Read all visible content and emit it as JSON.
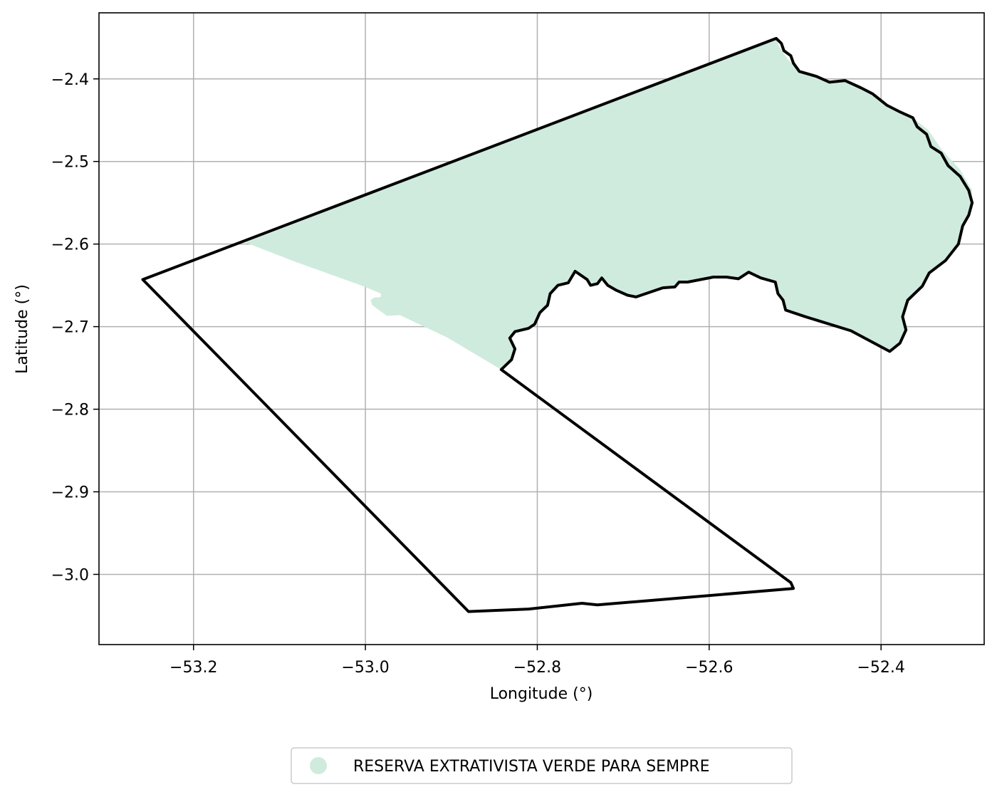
{
  "map": {
    "xlabel": "Longitude (°)",
    "ylabel": "Latitude (°)",
    "xlim": [
      -53.31,
      -52.28
    ],
    "ylim": [
      -3.085,
      -2.32
    ],
    "x_ticks": [
      {
        "value": -53.2,
        "label": "−53.2"
      },
      {
        "value": -53.0,
        "label": "−53.0"
      },
      {
        "value": -52.8,
        "label": "−52.8"
      },
      {
        "value": -52.6,
        "label": "−52.6"
      },
      {
        "value": -52.4,
        "label": "−52.4"
      }
    ],
    "y_ticks": [
      {
        "value": -2.4,
        "label": "−2.4"
      },
      {
        "value": -2.5,
        "label": "−2.5"
      },
      {
        "value": -2.6,
        "label": "−2.6"
      },
      {
        "value": -2.7,
        "label": "−2.7"
      },
      {
        "value": -2.8,
        "label": "−2.8"
      },
      {
        "value": -2.9,
        "label": "−2.9"
      },
      {
        "value": -3.0,
        "label": "−3.0"
      }
    ],
    "grid": true,
    "legend": {
      "placement": "bottom-center",
      "entries": [
        {
          "label": "RESERVA EXTRATIVISTA VERDE PARA SEMPRE",
          "color": "#cfebdd"
        }
      ]
    },
    "colors": {
      "reserve_fill": "#cfebdd",
      "boundary_stroke": "#000000",
      "grid": "#b0b0b0"
    },
    "layers": [
      {
        "name": "reserve-area",
        "type": "fill",
        "coords": [
          [
            -53.14,
            -2.598
          ],
          [
            -53.08,
            -2.622
          ],
          [
            -53.0,
            -2.652
          ],
          [
            -52.982,
            -2.66
          ],
          [
            -52.982,
            -2.664
          ],
          [
            -52.99,
            -2.665
          ],
          [
            -52.994,
            -2.668
          ],
          [
            -52.992,
            -2.674
          ],
          [
            -52.975,
            -2.687
          ],
          [
            -52.96,
            -2.686
          ],
          [
            -52.905,
            -2.713
          ],
          [
            -52.842,
            -2.752
          ],
          [
            -52.83,
            -2.74
          ],
          [
            -52.826,
            -2.727
          ],
          [
            -52.832,
            -2.714
          ],
          [
            -52.826,
            -2.706
          ],
          [
            -52.81,
            -2.702
          ],
          [
            -52.803,
            -2.697
          ],
          [
            -52.797,
            -2.683
          ],
          [
            -52.788,
            -2.674
          ],
          [
            -52.785,
            -2.66
          ],
          [
            -52.776,
            -2.65
          ],
          [
            -52.764,
            -2.647
          ],
          [
            -52.756,
            -2.633
          ],
          [
            -52.742,
            -2.643
          ],
          [
            -52.738,
            -2.65
          ],
          [
            -52.73,
            -2.648
          ],
          [
            -52.725,
            -2.641
          ],
          [
            -52.718,
            -2.65
          ],
          [
            -52.708,
            -2.656
          ],
          [
            -52.695,
            -2.662
          ],
          [
            -52.685,
            -2.664
          ],
          [
            -52.668,
            -2.658
          ],
          [
            -52.654,
            -2.653
          ],
          [
            -52.64,
            -2.652
          ],
          [
            -52.635,
            -2.646
          ],
          [
            -52.625,
            -2.646
          ],
          [
            -52.61,
            -2.643
          ],
          [
            -52.595,
            -2.64
          ],
          [
            -52.58,
            -2.64
          ],
          [
            -52.566,
            -2.642
          ],
          [
            -52.554,
            -2.634
          ],
          [
            -52.54,
            -2.641
          ],
          [
            -52.523,
            -2.646
          ],
          [
            -52.52,
            -2.66
          ],
          [
            -52.514,
            -2.668
          ],
          [
            -52.511,
            -2.68
          ],
          [
            -52.488,
            -2.688
          ],
          [
            -52.435,
            -2.705
          ],
          [
            -52.39,
            -2.73
          ],
          [
            -52.382,
            -2.722
          ],
          [
            -52.371,
            -2.704
          ],
          [
            -52.375,
            -2.688
          ],
          [
            -52.369,
            -2.668
          ],
          [
            -52.352,
            -2.651
          ],
          [
            -52.344,
            -2.635
          ],
          [
            -52.325,
            -2.62
          ],
          [
            -52.31,
            -2.6
          ],
          [
            -52.305,
            -2.578
          ],
          [
            -52.296,
            -2.56
          ],
          [
            -52.294,
            -2.535
          ],
          [
            -52.308,
            -2.51
          ],
          [
            -52.33,
            -2.485
          ],
          [
            -52.345,
            -2.462
          ],
          [
            -52.363,
            -2.447
          ],
          [
            -52.378,
            -2.44
          ],
          [
            -52.393,
            -2.432
          ],
          [
            -52.41,
            -2.418
          ],
          [
            -52.423,
            -2.411
          ],
          [
            -52.442,
            -2.402
          ],
          [
            -52.46,
            -2.404
          ],
          [
            -52.475,
            -2.397
          ],
          [
            -52.495,
            -2.39
          ],
          [
            -52.508,
            -2.377
          ],
          [
            -52.518,
            -2.362
          ],
          [
            -52.522,
            -2.352
          ],
          [
            -53.14,
            -2.598
          ]
        ]
      },
      {
        "name": "boundary-outline",
        "type": "line",
        "coords": [
          [
            -53.259,
            -2.643
          ],
          [
            -52.522,
            -2.351
          ],
          [
            -52.516,
            -2.357
          ],
          [
            -52.513,
            -2.366
          ],
          [
            -52.505,
            -2.372
          ],
          [
            -52.502,
            -2.381
          ],
          [
            -52.495,
            -2.391
          ],
          [
            -52.475,
            -2.397
          ],
          [
            -52.46,
            -2.404
          ],
          [
            -52.442,
            -2.402
          ],
          [
            -52.423,
            -2.411
          ],
          [
            -52.41,
            -2.418
          ],
          [
            -52.393,
            -2.432
          ],
          [
            -52.378,
            -2.44
          ],
          [
            -52.363,
            -2.447
          ],
          [
            -52.358,
            -2.458
          ],
          [
            -52.347,
            -2.467
          ],
          [
            -52.342,
            -2.482
          ],
          [
            -52.33,
            -2.49
          ],
          [
            -52.322,
            -2.505
          ],
          [
            -52.308,
            -2.518
          ],
          [
            -52.298,
            -2.535
          ],
          [
            -52.294,
            -2.55
          ],
          [
            -52.298,
            -2.565
          ],
          [
            -52.305,
            -2.578
          ],
          [
            -52.31,
            -2.6
          ],
          [
            -52.325,
            -2.62
          ],
          [
            -52.344,
            -2.635
          ],
          [
            -52.352,
            -2.651
          ],
          [
            -52.369,
            -2.668
          ],
          [
            -52.375,
            -2.688
          ],
          [
            -52.371,
            -2.704
          ],
          [
            -52.378,
            -2.72
          ],
          [
            -52.39,
            -2.73
          ],
          [
            -52.435,
            -2.705
          ],
          [
            -52.488,
            -2.688
          ],
          [
            -52.511,
            -2.68
          ],
          [
            -52.514,
            -2.668
          ],
          [
            -52.52,
            -2.66
          ],
          [
            -52.523,
            -2.646
          ],
          [
            -52.54,
            -2.641
          ],
          [
            -52.554,
            -2.634
          ],
          [
            -52.566,
            -2.642
          ],
          [
            -52.58,
            -2.64
          ],
          [
            -52.595,
            -2.64
          ],
          [
            -52.61,
            -2.643
          ],
          [
            -52.625,
            -2.646
          ],
          [
            -52.635,
            -2.646
          ],
          [
            -52.64,
            -2.652
          ],
          [
            -52.654,
            -2.653
          ],
          [
            -52.668,
            -2.658
          ],
          [
            -52.685,
            -2.664
          ],
          [
            -52.695,
            -2.662
          ],
          [
            -52.708,
            -2.656
          ],
          [
            -52.718,
            -2.65
          ],
          [
            -52.725,
            -2.641
          ],
          [
            -52.73,
            -2.648
          ],
          [
            -52.738,
            -2.65
          ],
          [
            -52.742,
            -2.643
          ],
          [
            -52.756,
            -2.633
          ],
          [
            -52.764,
            -2.647
          ],
          [
            -52.776,
            -2.65
          ],
          [
            -52.785,
            -2.66
          ],
          [
            -52.788,
            -2.674
          ],
          [
            -52.797,
            -2.683
          ],
          [
            -52.803,
            -2.697
          ],
          [
            -52.81,
            -2.702
          ],
          [
            -52.826,
            -2.706
          ],
          [
            -52.832,
            -2.714
          ],
          [
            -52.826,
            -2.727
          ],
          [
            -52.83,
            -2.74
          ],
          [
            -52.842,
            -2.752
          ],
          [
            -52.505,
            -3.01
          ],
          [
            -52.502,
            -3.017
          ],
          [
            -52.65,
            -3.03
          ],
          [
            -52.73,
            -3.037
          ],
          [
            -52.748,
            -3.035
          ],
          [
            -52.81,
            -3.042
          ],
          [
            -52.88,
            -3.045
          ],
          [
            -53.259,
            -2.643
          ]
        ]
      }
    ]
  }
}
